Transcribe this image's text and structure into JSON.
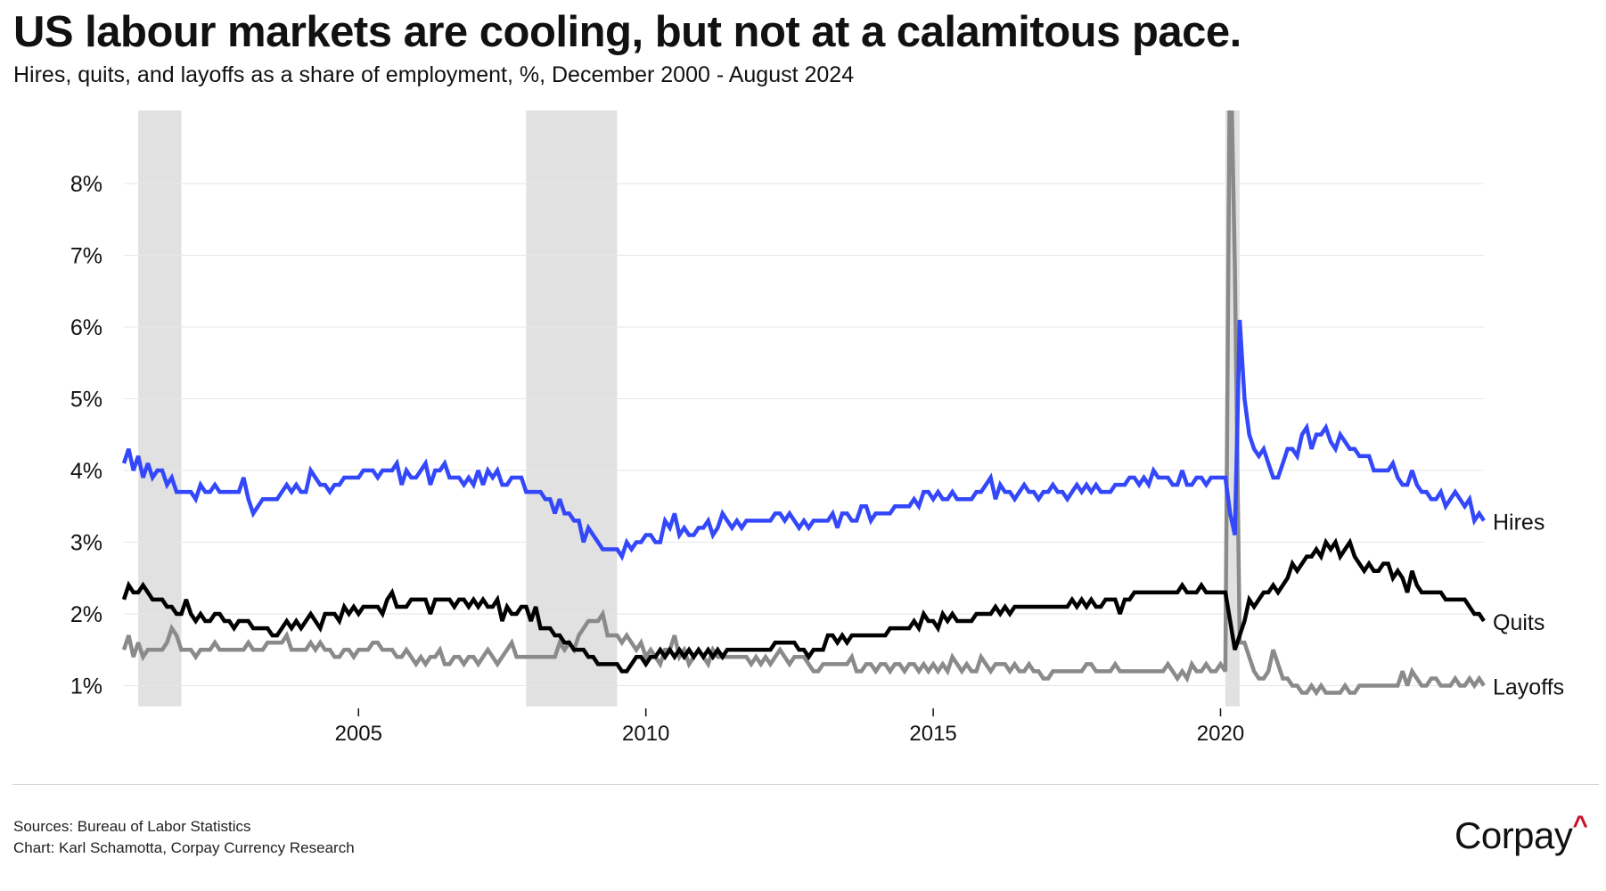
{
  "header": {
    "title": "US labour markets are cooling, but not at a calamitous pace.",
    "subtitle": "Hires, quits, and layoffs as a share of employment, %, December 2000 - August 2024"
  },
  "footer": {
    "sources": "Sources: Bureau of Labor Statistics",
    "credit": "Chart: Karl Schamotta, Corpay Currency Research",
    "logo": "Corpay"
  },
  "chart_data": {
    "type": "line",
    "title": "US labour markets are cooling, but not at a calamitous pace.",
    "subtitle": "Hires, quits, and layoffs as a share of employment, %, December 2000 - August 2024",
    "xlabel": "",
    "ylabel": "",
    "x_start": "2000-12",
    "x_end": "2024-08",
    "frequency": "monthly",
    "xlim": [
      2000.917,
      2024.583
    ],
    "ylim": [
      0.71,
      9.02
    ],
    "grid": true,
    "yticks": [
      1,
      2,
      3,
      4,
      5,
      6,
      7,
      8
    ],
    "ytick_labels": [
      "1%",
      "2%",
      "3%",
      "4%",
      "5%",
      "6%",
      "7%",
      "8%"
    ],
    "xticks": [
      2005,
      2010,
      2015,
      2020
    ],
    "xtick_labels": [
      "2005",
      "2010",
      "2015",
      "2020"
    ],
    "legend": "direct-labels-right",
    "recessions": [
      {
        "start": 2001.167,
        "end": 2001.917
      },
      {
        "start": 2007.917,
        "end": 2009.5
      },
      {
        "start": 2020.083,
        "end": 2020.333
      }
    ],
    "recession_color": "#e1e1e1",
    "series": [
      {
        "name": "Hires",
        "color": "#3347fb",
        "values": [
          4.1,
          4.3,
          4.0,
          4.2,
          3.9,
          4.1,
          3.9,
          4.0,
          4.0,
          3.8,
          3.9,
          3.7,
          3.7,
          3.7,
          3.7,
          3.6,
          3.8,
          3.7,
          3.7,
          3.8,
          3.7,
          3.7,
          3.7,
          3.7,
          3.7,
          3.9,
          3.6,
          3.4,
          3.5,
          3.6,
          3.6,
          3.6,
          3.6,
          3.7,
          3.8,
          3.7,
          3.8,
          3.7,
          3.7,
          4.0,
          3.9,
          3.8,
          3.8,
          3.7,
          3.8,
          3.8,
          3.9,
          3.9,
          3.9,
          3.9,
          4.0,
          4.0,
          4.0,
          3.9,
          4.0,
          4.0,
          4.0,
          4.1,
          3.8,
          4.0,
          3.9,
          3.9,
          4.0,
          4.1,
          3.8,
          4.0,
          4.0,
          4.1,
          3.9,
          3.9,
          3.9,
          3.8,
          3.9,
          3.8,
          4.0,
          3.8,
          4.0,
          3.9,
          4.0,
          3.8,
          3.8,
          3.9,
          3.9,
          3.9,
          3.7,
          3.7,
          3.7,
          3.7,
          3.6,
          3.6,
          3.4,
          3.6,
          3.4,
          3.4,
          3.3,
          3.3,
          3.0,
          3.2,
          3.1,
          3.0,
          2.9,
          2.9,
          2.9,
          2.9,
          2.8,
          3.0,
          2.9,
          3.0,
          3.0,
          3.1,
          3.1,
          3.0,
          3.0,
          3.3,
          3.2,
          3.4,
          3.1,
          3.2,
          3.1,
          3.1,
          3.2,
          3.2,
          3.3,
          3.1,
          3.2,
          3.4,
          3.3,
          3.2,
          3.3,
          3.2,
          3.3,
          3.3,
          3.3,
          3.3,
          3.3,
          3.3,
          3.4,
          3.4,
          3.3,
          3.4,
          3.3,
          3.2,
          3.3,
          3.2,
          3.3,
          3.3,
          3.3,
          3.3,
          3.4,
          3.2,
          3.4,
          3.4,
          3.3,
          3.3,
          3.5,
          3.5,
          3.3,
          3.4,
          3.4,
          3.4,
          3.4,
          3.5,
          3.5,
          3.5,
          3.5,
          3.6,
          3.5,
          3.7,
          3.7,
          3.6,
          3.7,
          3.6,
          3.6,
          3.7,
          3.6,
          3.6,
          3.6,
          3.6,
          3.7,
          3.7,
          3.8,
          3.9,
          3.6,
          3.8,
          3.7,
          3.7,
          3.6,
          3.7,
          3.8,
          3.7,
          3.7,
          3.6,
          3.7,
          3.7,
          3.8,
          3.7,
          3.7,
          3.6,
          3.7,
          3.8,
          3.7,
          3.8,
          3.7,
          3.8,
          3.7,
          3.7,
          3.7,
          3.8,
          3.8,
          3.8,
          3.9,
          3.9,
          3.8,
          3.9,
          3.8,
          4.0,
          3.9,
          3.9,
          3.9,
          3.8,
          3.8,
          4.0,
          3.8,
          3.8,
          3.9,
          3.9,
          3.8,
          3.9,
          3.9,
          3.9,
          3.9,
          3.4,
          3.1,
          6.1,
          5.0,
          4.5,
          4.3,
          4.2,
          4.3,
          4.1,
          3.9,
          3.9,
          4.1,
          4.3,
          4.3,
          4.2,
          4.5,
          4.6,
          4.3,
          4.5,
          4.5,
          4.6,
          4.4,
          4.3,
          4.5,
          4.4,
          4.3,
          4.3,
          4.2,
          4.2,
          4.2,
          4.0,
          4.0,
          4.0,
          4.0,
          4.1,
          3.9,
          3.8,
          3.8,
          4.0,
          3.8,
          3.7,
          3.7,
          3.6,
          3.6,
          3.7,
          3.5,
          3.6,
          3.7,
          3.6,
          3.5,
          3.6,
          3.3,
          3.4,
          3.3
        ]
      },
      {
        "name": "Quits",
        "color": "#000000",
        "values": [
          2.2,
          2.4,
          2.3,
          2.3,
          2.4,
          2.3,
          2.2,
          2.2,
          2.2,
          2.1,
          2.1,
          2.0,
          2.0,
          2.2,
          2.0,
          1.9,
          2.0,
          1.9,
          1.9,
          2.0,
          2.0,
          1.9,
          1.9,
          1.8,
          1.9,
          1.9,
          1.9,
          1.8,
          1.8,
          1.8,
          1.8,
          1.7,
          1.7,
          1.8,
          1.9,
          1.8,
          1.9,
          1.8,
          1.9,
          2.0,
          1.9,
          1.8,
          2.0,
          2.0,
          2.0,
          1.9,
          2.1,
          2.0,
          2.1,
          2.0,
          2.1,
          2.1,
          2.1,
          2.1,
          2.0,
          2.2,
          2.3,
          2.1,
          2.1,
          2.1,
          2.2,
          2.2,
          2.2,
          2.2,
          2.0,
          2.2,
          2.2,
          2.2,
          2.2,
          2.1,
          2.2,
          2.2,
          2.1,
          2.2,
          2.1,
          2.2,
          2.1,
          2.1,
          2.2,
          1.9,
          2.1,
          2.0,
          2.0,
          2.1,
          2.1,
          1.9,
          2.1,
          1.8,
          1.8,
          1.8,
          1.7,
          1.7,
          1.6,
          1.6,
          1.5,
          1.5,
          1.5,
          1.4,
          1.4,
          1.3,
          1.3,
          1.3,
          1.3,
          1.3,
          1.2,
          1.2,
          1.3,
          1.4,
          1.4,
          1.3,
          1.4,
          1.4,
          1.5,
          1.4,
          1.5,
          1.4,
          1.5,
          1.4,
          1.5,
          1.4,
          1.5,
          1.4,
          1.5,
          1.4,
          1.5,
          1.4,
          1.5,
          1.5,
          1.5,
          1.5,
          1.5,
          1.5,
          1.5,
          1.5,
          1.5,
          1.5,
          1.6,
          1.6,
          1.6,
          1.6,
          1.6,
          1.5,
          1.5,
          1.4,
          1.5,
          1.5,
          1.5,
          1.7,
          1.7,
          1.6,
          1.7,
          1.6,
          1.7,
          1.7,
          1.7,
          1.7,
          1.7,
          1.7,
          1.7,
          1.7,
          1.8,
          1.8,
          1.8,
          1.8,
          1.8,
          1.9,
          1.8,
          2.0,
          1.9,
          1.9,
          1.8,
          2.0,
          1.9,
          2.0,
          1.9,
          1.9,
          1.9,
          1.9,
          2.0,
          2.0,
          2.0,
          2.0,
          2.1,
          2.0,
          2.1,
          2.0,
          2.1,
          2.1,
          2.1,
          2.1,
          2.1,
          2.1,
          2.1,
          2.1,
          2.1,
          2.1,
          2.1,
          2.1,
          2.2,
          2.1,
          2.2,
          2.1,
          2.2,
          2.1,
          2.1,
          2.2,
          2.2,
          2.2,
          2.0,
          2.2,
          2.2,
          2.3,
          2.3,
          2.3,
          2.3,
          2.3,
          2.3,
          2.3,
          2.3,
          2.3,
          2.3,
          2.4,
          2.3,
          2.3,
          2.3,
          2.4,
          2.3,
          2.3,
          2.3,
          2.3,
          2.3,
          1.9,
          1.5,
          1.7,
          1.9,
          2.2,
          2.1,
          2.2,
          2.3,
          2.3,
          2.4,
          2.3,
          2.4,
          2.5,
          2.7,
          2.6,
          2.7,
          2.8,
          2.8,
          2.9,
          2.8,
          3.0,
          2.9,
          3.0,
          2.8,
          2.9,
          3.0,
          2.8,
          2.7,
          2.6,
          2.7,
          2.6,
          2.6,
          2.7,
          2.7,
          2.5,
          2.6,
          2.5,
          2.3,
          2.6,
          2.4,
          2.3,
          2.3,
          2.3,
          2.3,
          2.3,
          2.2,
          2.2,
          2.2,
          2.2,
          2.2,
          2.1,
          2.0,
          2.0,
          1.9
        ]
      },
      {
        "name": "Layoffs",
        "color": "#8a8a8a",
        "values": [
          1.5,
          1.7,
          1.4,
          1.6,
          1.4,
          1.5,
          1.5,
          1.5,
          1.5,
          1.6,
          1.8,
          1.7,
          1.5,
          1.5,
          1.5,
          1.4,
          1.5,
          1.5,
          1.5,
          1.6,
          1.5,
          1.5,
          1.5,
          1.5,
          1.5,
          1.5,
          1.6,
          1.5,
          1.5,
          1.5,
          1.6,
          1.6,
          1.6,
          1.6,
          1.7,
          1.5,
          1.5,
          1.5,
          1.5,
          1.6,
          1.5,
          1.6,
          1.5,
          1.5,
          1.4,
          1.4,
          1.5,
          1.5,
          1.4,
          1.5,
          1.5,
          1.5,
          1.6,
          1.6,
          1.5,
          1.5,
          1.5,
          1.4,
          1.4,
          1.5,
          1.4,
          1.3,
          1.4,
          1.3,
          1.4,
          1.4,
          1.5,
          1.3,
          1.3,
          1.4,
          1.4,
          1.3,
          1.4,
          1.4,
          1.3,
          1.4,
          1.5,
          1.4,
          1.3,
          1.4,
          1.5,
          1.6,
          1.4,
          1.4,
          1.4,
          1.4,
          1.4,
          1.4,
          1.4,
          1.4,
          1.4,
          1.6,
          1.5,
          1.6,
          1.5,
          1.7,
          1.8,
          1.9,
          1.9,
          1.9,
          2.0,
          1.7,
          1.7,
          1.7,
          1.6,
          1.7,
          1.6,
          1.5,
          1.6,
          1.4,
          1.5,
          1.4,
          1.3,
          1.5,
          1.5,
          1.7,
          1.4,
          1.5,
          1.3,
          1.4,
          1.5,
          1.4,
          1.3,
          1.5,
          1.4,
          1.4,
          1.4,
          1.4,
          1.4,
          1.4,
          1.4,
          1.3,
          1.4,
          1.3,
          1.4,
          1.3,
          1.4,
          1.5,
          1.4,
          1.3,
          1.4,
          1.4,
          1.4,
          1.3,
          1.2,
          1.2,
          1.3,
          1.3,
          1.3,
          1.3,
          1.3,
          1.3,
          1.4,
          1.2,
          1.2,
          1.3,
          1.3,
          1.2,
          1.3,
          1.3,
          1.2,
          1.3,
          1.3,
          1.2,
          1.3,
          1.3,
          1.2,
          1.3,
          1.2,
          1.3,
          1.2,
          1.3,
          1.2,
          1.4,
          1.3,
          1.2,
          1.3,
          1.2,
          1.2,
          1.4,
          1.3,
          1.2,
          1.3,
          1.3,
          1.3,
          1.2,
          1.3,
          1.2,
          1.2,
          1.3,
          1.2,
          1.2,
          1.1,
          1.1,
          1.2,
          1.2,
          1.2,
          1.2,
          1.2,
          1.2,
          1.2,
          1.3,
          1.3,
          1.2,
          1.2,
          1.2,
          1.2,
          1.3,
          1.2,
          1.2,
          1.2,
          1.2,
          1.2,
          1.2,
          1.2,
          1.2,
          1.2,
          1.2,
          1.3,
          1.2,
          1.1,
          1.2,
          1.1,
          1.3,
          1.2,
          1.2,
          1.3,
          1.2,
          1.2,
          1.3,
          1.2,
          10.3,
          6.8,
          1.6,
          1.6,
          1.4,
          1.2,
          1.1,
          1.1,
          1.2,
          1.5,
          1.3,
          1.1,
          1.1,
          1.0,
          1.0,
          0.9,
          0.9,
          1.0,
          0.9,
          1.0,
          0.9,
          0.9,
          0.9,
          0.9,
          1.0,
          0.9,
          0.9,
          1.0,
          1.0,
          1.0,
          1.0,
          1.0,
          1.0,
          1.0,
          1.0,
          1.0,
          1.2,
          1.0,
          1.2,
          1.1,
          1.0,
          1.0,
          1.1,
          1.1,
          1.0,
          1.0,
          1.0,
          1.1,
          1.0,
          1.0,
          1.1,
          1.0,
          1.1,
          1.0
        ]
      }
    ]
  }
}
